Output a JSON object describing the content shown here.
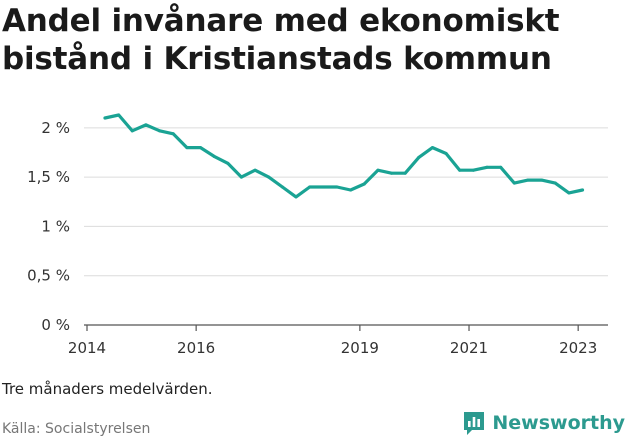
{
  "title": "Andel invånare med ekonomiskt bistånd i Kristianstads kommun",
  "note": "Tre månaders medelvärden.",
  "source": "Källa: Socialstyrelsen",
  "brand": {
    "name": "Newsworthy",
    "icon": "bar-chart-logo-icon",
    "color": "#2c9a8f"
  },
  "chart_data": {
    "type": "line",
    "title": "Andel invånare med ekonomiskt bistånd i Kristianstads kommun",
    "xlabel": "",
    "ylabel": "",
    "xlim": [
      2014,
      2023.4
    ],
    "ylim": [
      0,
      2.1
    ],
    "x_ticks": [
      2014,
      2016,
      2019,
      2021,
      2023
    ],
    "x_tick_labels": [
      "2014",
      "2016",
      "2019",
      "2021",
      "2023"
    ],
    "y_ticks": [
      0,
      0.5,
      1,
      1.5,
      2
    ],
    "y_tick_labels": [
      "0 %",
      "0,5 %",
      "1 %",
      "1,5 %",
      "2 %"
    ],
    "grid": true,
    "line_color": "#1aa394",
    "series": [
      {
        "x": [
          2014.33,
          2014.58,
          2014.83,
          2015.08,
          2015.33,
          2015.58,
          2015.83,
          2016.08,
          2016.33,
          2016.58,
          2016.83,
          2017.08,
          2017.33,
          2017.58,
          2017.83,
          2018.08,
          2018.33,
          2018.58,
          2018.83,
          2019.08,
          2019.33,
          2019.58,
          2019.83,
          2020.08,
          2020.33,
          2020.58,
          2020.83,
          2021.08,
          2021.33,
          2021.58,
          2021.83,
          2022.08,
          2022.33,
          2022.58,
          2022.83,
          2023.08
        ],
        "y": [
          2.1,
          2.13,
          1.97,
          2.03,
          1.97,
          1.94,
          1.8,
          1.8,
          1.71,
          1.64,
          1.5,
          1.57,
          1.5,
          1.4,
          1.3,
          1.4,
          1.4,
          1.4,
          1.37,
          1.43,
          1.57,
          1.54,
          1.54,
          1.7,
          1.8,
          1.74,
          1.57,
          1.57,
          1.6,
          1.6,
          1.44,
          1.47,
          1.47,
          1.44,
          1.34,
          1.37
        ]
      }
    ]
  }
}
